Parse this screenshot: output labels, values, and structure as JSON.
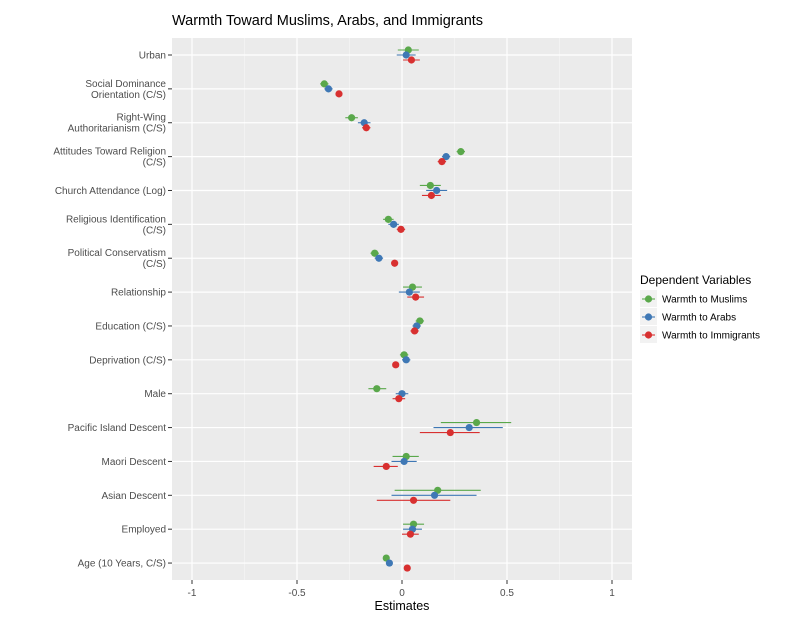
{
  "chart_data": {
    "type": "scatter",
    "subtype": "coefficient-plot-with-error-bars",
    "title": "Warmth Toward Muslims, Arabs, and Immigrants",
    "xlabel": "Estimates",
    "ylabel": "",
    "xlim": [
      -1.1,
      1.1
    ],
    "xticks": [
      -1,
      -0.5,
      0,
      0.5,
      1
    ],
    "xtick_labels": [
      "-1",
      "-0.5",
      "0",
      "0.5",
      "1"
    ],
    "grid": true,
    "categories": [
      [
        "Urban"
      ],
      [
        "Social Dominance",
        "Orientation (C/S)"
      ],
      [
        "Right-Wing",
        "Authoritarianism (C/S)"
      ],
      [
        "Attitudes Toward Religion",
        "(C/S)"
      ],
      [
        "Church Attendance (Log)"
      ],
      [
        "Religious Identification",
        "(C/S)"
      ],
      [
        "Political Conservatism",
        "(C/S)"
      ],
      [
        "Relationship"
      ],
      [
        "Education (C/S)"
      ],
      [
        "Deprivation (C/S)"
      ],
      [
        "Male"
      ],
      [
        "Pacific Island Descent"
      ],
      [
        "Maori Descent"
      ],
      [
        "Asian Descent"
      ],
      [
        "Employed"
      ],
      [
        "Age (10 Years, C/S)"
      ]
    ],
    "legend": {
      "title": "Dependent Variables",
      "position": "right"
    },
    "series": [
      {
        "name": "Warmth to Muslims",
        "color": "#5aa84b",
        "values": [
          0.03,
          -0.37,
          -0.24,
          0.28,
          0.135,
          -0.065,
          -0.13,
          0.05,
          0.085,
          0.01,
          -0.12,
          0.355,
          0.02,
          0.17,
          0.055,
          -0.075
        ],
        "ci_low": [
          -0.02,
          -0.39,
          -0.27,
          0.26,
          0.085,
          -0.09,
          -0.15,
          0.005,
          0.065,
          -0.01,
          -0.16,
          0.185,
          -0.045,
          -0.035,
          0.005,
          -0.09
        ],
        "ci_high": [
          0.08,
          -0.35,
          -0.21,
          0.3,
          0.185,
          -0.04,
          -0.11,
          0.095,
          0.105,
          0.03,
          -0.075,
          0.52,
          0.08,
          0.375,
          0.105,
          -0.06
        ]
      },
      {
        "name": "Warmth to Arabs",
        "color": "#3f78b5",
        "values": [
          0.02,
          -0.35,
          -0.18,
          0.21,
          0.165,
          -0.04,
          -0.11,
          0.035,
          0.07,
          0.02,
          0.0,
          0.32,
          0.01,
          0.155,
          0.05,
          -0.06
        ],
        "ci_low": [
          -0.025,
          -0.37,
          -0.21,
          0.19,
          0.115,
          -0.065,
          -0.13,
          -0.015,
          0.05,
          0.0,
          -0.03,
          0.15,
          -0.05,
          -0.05,
          0.005,
          -0.075
        ],
        "ci_high": [
          0.065,
          -0.33,
          -0.15,
          0.23,
          0.215,
          -0.015,
          -0.09,
          0.085,
          0.09,
          0.04,
          0.03,
          0.48,
          0.07,
          0.355,
          0.095,
          -0.045
        ]
      },
      {
        "name": "Warmth to Immigrants",
        "color": "#d83030",
        "values": [
          0.045,
          -0.3,
          -0.17,
          0.19,
          0.14,
          -0.005,
          -0.035,
          0.065,
          0.06,
          -0.03,
          -0.015,
          0.23,
          -0.075,
          0.055,
          0.04,
          0.025
        ],
        "ci_low": [
          0.005,
          -0.315,
          -0.19,
          0.17,
          0.095,
          -0.025,
          -0.05,
          0.025,
          0.04,
          -0.045,
          -0.045,
          0.085,
          -0.135,
          -0.12,
          0.0,
          0.01
        ],
        "ci_high": [
          0.085,
          -0.285,
          -0.15,
          0.21,
          0.185,
          0.015,
          -0.02,
          0.105,
          0.08,
          -0.015,
          0.015,
          0.37,
          -0.02,
          0.23,
          0.08,
          0.04
        ]
      }
    ]
  }
}
